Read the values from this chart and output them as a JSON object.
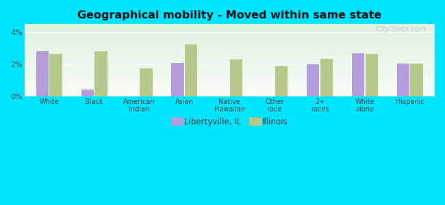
{
  "title": "Geographical mobility - Moved within same state",
  "categories": [
    "White",
    "Black",
    "American\nIndian",
    "Asian",
    "Native\nHawaiian",
    "Other\nrace",
    "2+\nraces",
    "White\nalone",
    "Hispanic"
  ],
  "libertyville": [
    2.8,
    0.4,
    0.0,
    2.1,
    0.0,
    0.0,
    2.0,
    2.7,
    2.05
  ],
  "illinois": [
    2.65,
    2.8,
    1.75,
    3.25,
    2.3,
    1.85,
    2.35,
    2.65,
    2.05
  ],
  "color_libertyville": "#b39ddb",
  "color_illinois": "#b5c98a",
  "background_outer": "#00e5ff",
  "ylim": [
    0,
    4.5
  ],
  "yticks": [
    0,
    2,
    4
  ],
  "ytick_labels": [
    "0%",
    "2%",
    "4%"
  ],
  "legend_libertyville": "Libertyville, IL",
  "legend_illinois": "Illinois",
  "watermark": "City-Data.com"
}
